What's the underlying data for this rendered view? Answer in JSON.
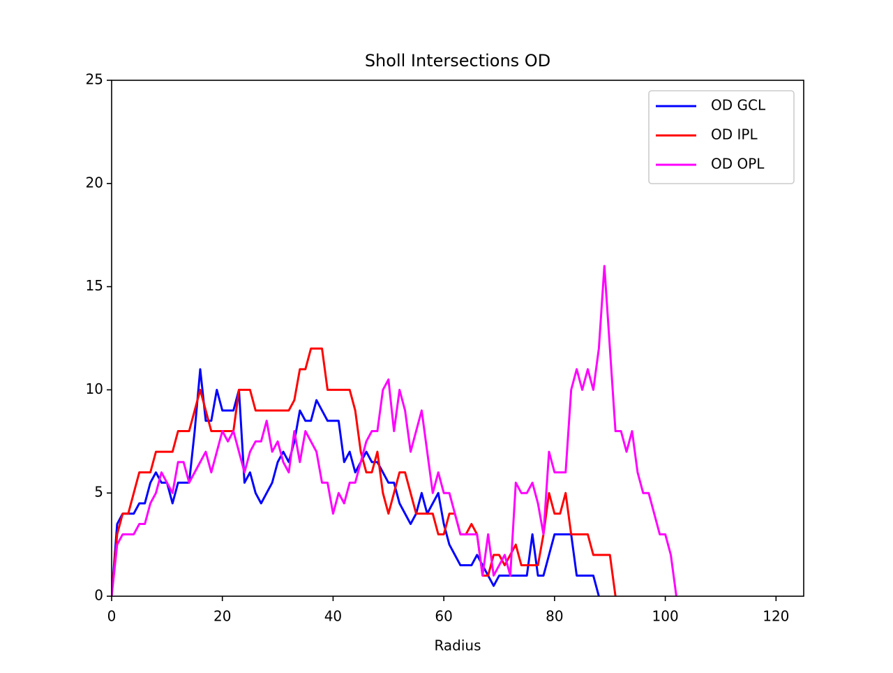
{
  "chart_data": {
    "type": "line",
    "title": "Sholl Intersections OD",
    "x_label": "Radius",
    "x": [
      0,
      1,
      2,
      3,
      4,
      5,
      6,
      7,
      8,
      9,
      10,
      11,
      12,
      13,
      14,
      15,
      16,
      17,
      18,
      19,
      20,
      21,
      22,
      23,
      24,
      25,
      26,
      27,
      28,
      29,
      30,
      31,
      32,
      33,
      34,
      35,
      36,
      37,
      38,
      39,
      40,
      41,
      42,
      43,
      44,
      45,
      46,
      47,
      48,
      49,
      50,
      51,
      52,
      53,
      54,
      55,
      56,
      57,
      58,
      59,
      60,
      61,
      62,
      63,
      64,
      65,
      66,
      67,
      68,
      69,
      70,
      71,
      72,
      73,
      74,
      75,
      76,
      77,
      78,
      79,
      80,
      81,
      82,
      83,
      84,
      85,
      86,
      87,
      88,
      89,
      90,
      91,
      92,
      93,
      94,
      95,
      96,
      97,
      98,
      99,
      100,
      101,
      102
    ],
    "series": [
      {
        "name": "OD GCL",
        "color": "#0000ff",
        "values": [
          0,
          3.5,
          4,
          4,
          4,
          4.5,
          4.5,
          5.5,
          6,
          5.5,
          5.5,
          4.5,
          5.5,
          5.5,
          5.5,
          8,
          11,
          8.5,
          8.5,
          10,
          9,
          9,
          9,
          10,
          5.5,
          6,
          5,
          4.5,
          5,
          5.5,
          6.5,
          7,
          6.5,
          7.5,
          9,
          8.5,
          8.5,
          9.5,
          9,
          8.5,
          8.5,
          8.5,
          6.5,
          7,
          6,
          6.5,
          7,
          6.5,
          6.5,
          6,
          5.5,
          5.5,
          4.5,
          4,
          3.5,
          4,
          5,
          4,
          4.5,
          5,
          3.5,
          2.5,
          2,
          1.5,
          1.5,
          1.5,
          2,
          1.5,
          1,
          0.5,
          1,
          1,
          1,
          1,
          1,
          1,
          3,
          1,
          1,
          2,
          3,
          3,
          3,
          3,
          1,
          1,
          1,
          1,
          0,
          null,
          null,
          null,
          null,
          null,
          null,
          null,
          null,
          null,
          null,
          null,
          null,
          null,
          null
        ]
      },
      {
        "name": "OD IPL",
        "color": "#ff0000",
        "values": [
          0,
          3,
          4,
          4,
          5,
          6,
          6,
          6,
          7,
          7,
          7,
          7,
          8,
          8,
          8,
          9,
          10,
          9,
          8,
          8,
          8,
          8,
          8,
          10,
          10,
          10,
          9,
          9,
          9,
          9,
          9,
          9,
          9,
          9.5,
          11,
          11,
          12,
          12,
          12,
          10,
          10,
          10,
          10,
          10,
          9,
          7,
          6,
          6,
          7,
          5,
          4,
          5,
          6,
          6,
          5,
          4,
          4,
          4,
          4,
          3,
          3,
          4,
          4,
          3,
          3,
          3.5,
          3,
          1,
          1,
          2,
          2,
          1.5,
          2,
          2.5,
          1.5,
          1.5,
          1.5,
          1.5,
          3,
          5,
          4,
          4,
          5,
          3,
          3,
          3,
          3,
          2,
          2,
          2,
          2,
          0,
          null,
          null,
          null,
          null,
          null,
          null,
          null,
          null,
          null,
          null,
          null
        ]
      },
      {
        "name": "OD OPL",
        "color": "#ff00ff",
        "values": [
          0,
          2.5,
          3,
          3,
          3,
          3.5,
          3.5,
          4.5,
          5,
          6,
          5.5,
          5,
          6.5,
          6.5,
          5.5,
          6,
          6.5,
          7,
          6,
          7,
          8,
          7.5,
          8,
          7,
          6,
          7,
          7.5,
          7.5,
          8.5,
          7,
          7.5,
          6.5,
          6,
          8,
          6.5,
          8,
          7.5,
          7,
          5.5,
          5.5,
          4,
          5,
          4.5,
          5.5,
          5.5,
          6.5,
          7.5,
          8,
          8,
          10,
          10.5,
          8,
          10,
          9,
          7,
          8,
          9,
          7,
          5,
          6,
          5,
          5,
          4,
          3,
          3,
          3,
          3,
          1,
          3,
          1,
          1.5,
          2,
          1,
          5.5,
          5,
          5,
          5.5,
          4.5,
          3,
          7,
          6,
          6,
          6,
          10,
          11,
          10,
          11,
          10,
          12,
          16,
          12,
          8,
          8,
          7,
          8,
          6,
          5,
          5,
          4,
          3,
          3,
          2,
          0
        ]
      }
    ],
    "xlim": [
      0,
      125
    ],
    "xticks": [
      0,
      20,
      40,
      60,
      80,
      100,
      120
    ],
    "ylim": [
      0,
      25
    ],
    "yticks": [
      0,
      5,
      10,
      15,
      20,
      25
    ],
    "legend": "upper right"
  }
}
